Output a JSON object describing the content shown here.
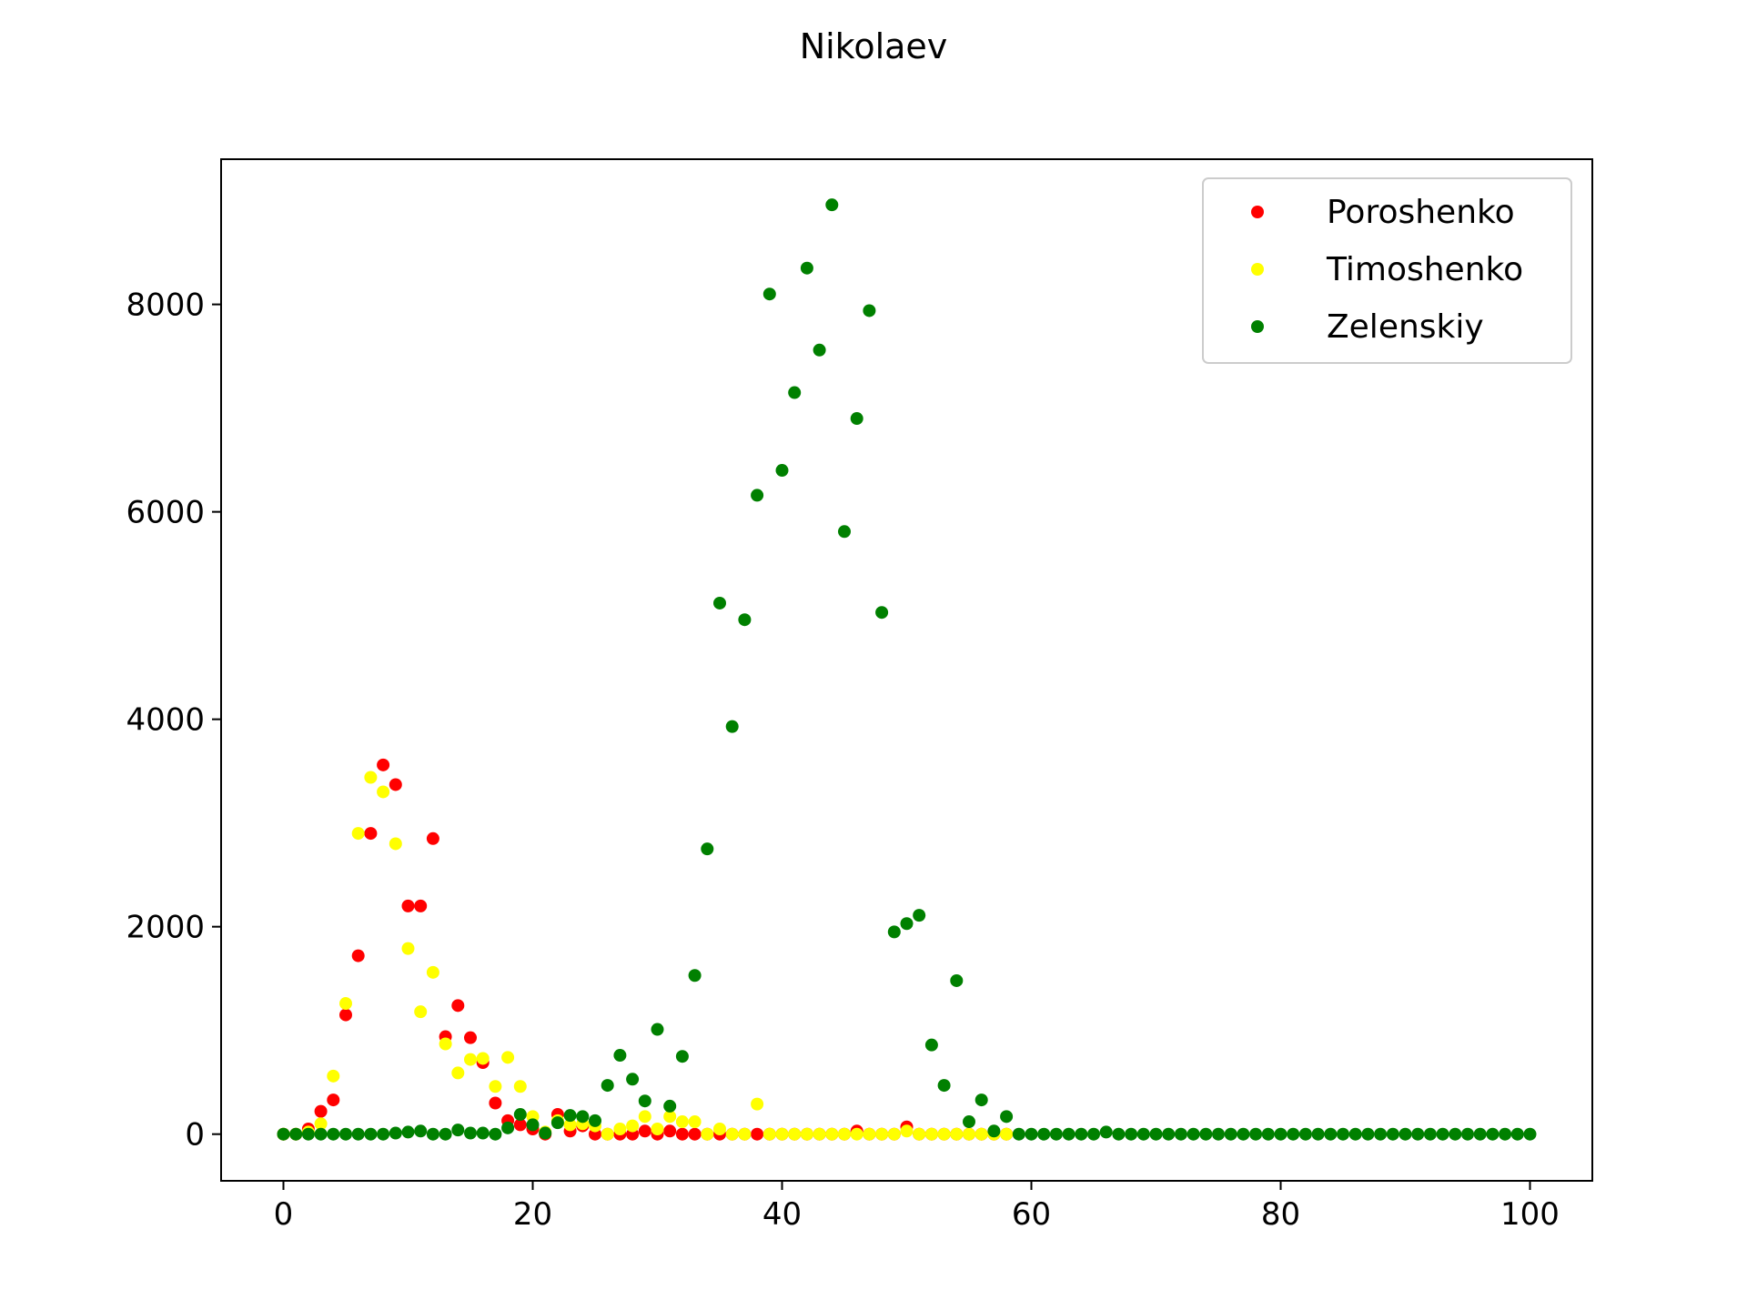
{
  "chart_data": {
    "type": "scatter",
    "title": "Nikolaev",
    "xlabel": "",
    "ylabel": "",
    "xlim": [
      -5,
      105
    ],
    "ylim": [
      -450,
      9400
    ],
    "xticks": [
      0,
      20,
      40,
      60,
      80,
      100
    ],
    "yticks": [
      0,
      2000,
      4000,
      6000,
      8000
    ],
    "grid": false,
    "legend_position": "top-right",
    "series": [
      {
        "name": "Poroshenko",
        "color": "#ff0000",
        "points": [
          [
            0,
            0
          ],
          [
            1,
            0
          ],
          [
            2,
            50
          ],
          [
            3,
            220
          ],
          [
            4,
            330
          ],
          [
            5,
            1150
          ],
          [
            6,
            1720
          ],
          [
            7,
            2900
          ],
          [
            8,
            3560
          ],
          [
            9,
            3370
          ],
          [
            10,
            2200
          ],
          [
            11,
            2200
          ],
          [
            12,
            2850
          ],
          [
            13,
            940
          ],
          [
            14,
            1240
          ],
          [
            15,
            930
          ],
          [
            16,
            690
          ],
          [
            17,
            300
          ],
          [
            18,
            130
          ],
          [
            19,
            90
          ],
          [
            20,
            50
          ],
          [
            21,
            0
          ],
          [
            22,
            190
          ],
          [
            23,
            30
          ],
          [
            24,
            80
          ],
          [
            25,
            0
          ],
          [
            26,
            0
          ],
          [
            27,
            0
          ],
          [
            28,
            0
          ],
          [
            29,
            30
          ],
          [
            30,
            0
          ],
          [
            31,
            30
          ],
          [
            32,
            0
          ],
          [
            33,
            0
          ],
          [
            34,
            0
          ],
          [
            35,
            0
          ],
          [
            36,
            0
          ],
          [
            37,
            0
          ],
          [
            38,
            0
          ],
          [
            39,
            0
          ],
          [
            40,
            0
          ],
          [
            41,
            0
          ],
          [
            42,
            0
          ],
          [
            43,
            0
          ],
          [
            44,
            0
          ],
          [
            45,
            0
          ],
          [
            46,
            30
          ],
          [
            47,
            0
          ],
          [
            48,
            0
          ],
          [
            49,
            0
          ],
          [
            50,
            70
          ],
          [
            51,
            0
          ],
          [
            52,
            0
          ],
          [
            53,
            0
          ],
          [
            54,
            0
          ],
          [
            55,
            0
          ],
          [
            56,
            0
          ],
          [
            57,
            0
          ],
          [
            58,
            0
          ]
        ]
      },
      {
        "name": "Timoshenko",
        "color": "#ffff00",
        "points": [
          [
            0,
            0
          ],
          [
            1,
            0
          ],
          [
            2,
            20
          ],
          [
            3,
            100
          ],
          [
            4,
            560
          ],
          [
            5,
            1260
          ],
          [
            6,
            2900
          ],
          [
            7,
            3440
          ],
          [
            8,
            3300
          ],
          [
            9,
            2800
          ],
          [
            10,
            1790
          ],
          [
            11,
            1180
          ],
          [
            12,
            1560
          ],
          [
            13,
            870
          ],
          [
            14,
            590
          ],
          [
            15,
            720
          ],
          [
            16,
            730
          ],
          [
            17,
            460
          ],
          [
            18,
            740
          ],
          [
            19,
            460
          ],
          [
            20,
            170
          ],
          [
            21,
            20
          ],
          [
            22,
            130
          ],
          [
            23,
            90
          ],
          [
            24,
            100
          ],
          [
            25,
            80
          ],
          [
            26,
            0
          ],
          [
            27,
            50
          ],
          [
            28,
            80
          ],
          [
            29,
            170
          ],
          [
            30,
            50
          ],
          [
            31,
            170
          ],
          [
            32,
            120
          ],
          [
            33,
            120
          ],
          [
            34,
            0
          ],
          [
            35,
            50
          ],
          [
            36,
            0
          ],
          [
            37,
            0
          ],
          [
            38,
            290
          ],
          [
            39,
            0
          ],
          [
            40,
            0
          ],
          [
            41,
            0
          ],
          [
            42,
            0
          ],
          [
            43,
            0
          ],
          [
            44,
            0
          ],
          [
            45,
            0
          ],
          [
            46,
            0
          ],
          [
            47,
            0
          ],
          [
            48,
            0
          ],
          [
            49,
            0
          ],
          [
            50,
            30
          ],
          [
            51,
            0
          ],
          [
            52,
            0
          ],
          [
            53,
            0
          ],
          [
            54,
            0
          ],
          [
            55,
            0
          ],
          [
            56,
            0
          ],
          [
            57,
            0
          ],
          [
            58,
            0
          ]
        ]
      },
      {
        "name": "Zelenskiy",
        "color": "#008000",
        "points": [
          [
            0,
            0
          ],
          [
            1,
            0
          ],
          [
            2,
            0
          ],
          [
            3,
            0
          ],
          [
            4,
            0
          ],
          [
            5,
            0
          ],
          [
            6,
            0
          ],
          [
            7,
            0
          ],
          [
            8,
            0
          ],
          [
            9,
            10
          ],
          [
            10,
            20
          ],
          [
            11,
            30
          ],
          [
            12,
            0
          ],
          [
            13,
            0
          ],
          [
            14,
            40
          ],
          [
            15,
            10
          ],
          [
            16,
            10
          ],
          [
            17,
            0
          ],
          [
            18,
            60
          ],
          [
            19,
            190
          ],
          [
            20,
            90
          ],
          [
            21,
            10
          ],
          [
            22,
            110
          ],
          [
            23,
            180
          ],
          [
            24,
            170
          ],
          [
            25,
            130
          ],
          [
            26,
            470
          ],
          [
            27,
            760
          ],
          [
            28,
            530
          ],
          [
            29,
            320
          ],
          [
            30,
            1010
          ],
          [
            31,
            270
          ],
          [
            32,
            750
          ],
          [
            33,
            1530
          ],
          [
            34,
            2750
          ],
          [
            35,
            5120
          ],
          [
            36,
            3930
          ],
          [
            37,
            4960
          ],
          [
            38,
            6160
          ],
          [
            39,
            8100
          ],
          [
            40,
            6400
          ],
          [
            41,
            7150
          ],
          [
            42,
            8350
          ],
          [
            43,
            7560
          ],
          [
            44,
            8960
          ],
          [
            45,
            5810
          ],
          [
            46,
            6900
          ],
          [
            47,
            7940
          ],
          [
            48,
            5030
          ],
          [
            49,
            1950
          ],
          [
            50,
            2030
          ],
          [
            51,
            2110
          ],
          [
            52,
            860
          ],
          [
            53,
            470
          ],
          [
            54,
            1480
          ],
          [
            55,
            120
          ],
          [
            56,
            330
          ],
          [
            57,
            30
          ],
          [
            58,
            170
          ],
          [
            59,
            0
          ],
          [
            60,
            0
          ],
          [
            61,
            0
          ],
          [
            62,
            0
          ],
          [
            63,
            0
          ],
          [
            64,
            0
          ],
          [
            65,
            0
          ],
          [
            66,
            20
          ],
          [
            67,
            0
          ],
          [
            68,
            0
          ],
          [
            69,
            0
          ],
          [
            70,
            0
          ],
          [
            71,
            0
          ],
          [
            72,
            0
          ],
          [
            73,
            0
          ],
          [
            74,
            0
          ],
          [
            75,
            0
          ],
          [
            76,
            0
          ],
          [
            77,
            0
          ],
          [
            78,
            0
          ],
          [
            79,
            0
          ],
          [
            80,
            0
          ],
          [
            81,
            0
          ],
          [
            82,
            0
          ],
          [
            83,
            0
          ],
          [
            84,
            0
          ],
          [
            85,
            0
          ],
          [
            86,
            0
          ],
          [
            87,
            0
          ],
          [
            88,
            0
          ],
          [
            89,
            0
          ],
          [
            90,
            0
          ],
          [
            91,
            0
          ],
          [
            92,
            0
          ],
          [
            93,
            0
          ],
          [
            94,
            0
          ],
          [
            95,
            0
          ],
          [
            96,
            0
          ],
          [
            97,
            0
          ],
          [
            98,
            0
          ],
          [
            99,
            0
          ],
          [
            100,
            0
          ]
        ]
      }
    ]
  }
}
